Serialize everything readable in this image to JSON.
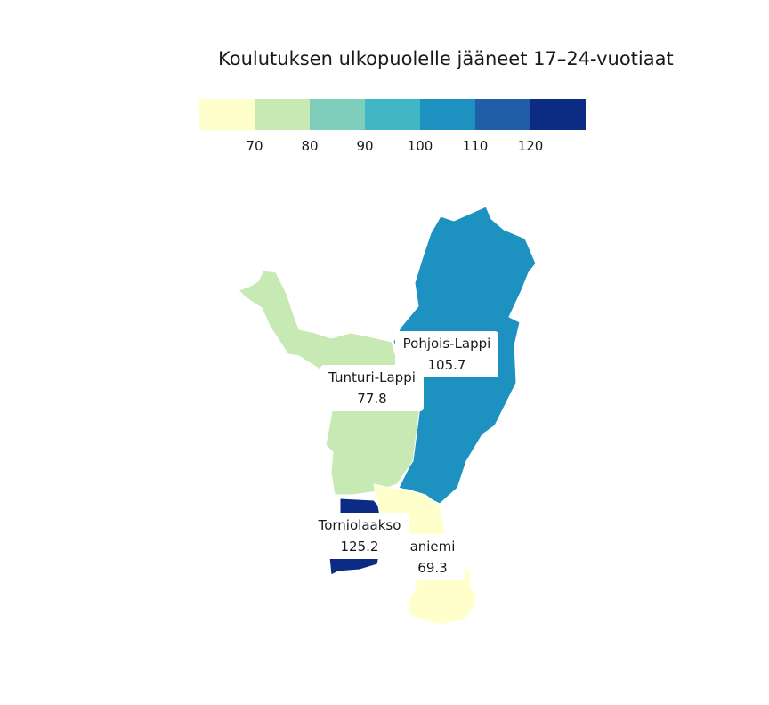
{
  "title": "Koulutuksen ulkopuolelle jääneet 17–24-vuotiaat",
  "legend": {
    "colors": [
      "#ffffcc",
      "#c7e9b4",
      "#7fcdbb",
      "#41b6c4",
      "#1d91c0",
      "#225ea8",
      "#0c2c84"
    ],
    "ticks": [
      "70",
      "80",
      "90",
      "100",
      "110",
      "120"
    ]
  },
  "regions": [
    {
      "name": "Pohjois-Lappi",
      "value": "105.7",
      "color": "#1d91c0"
    },
    {
      "name": "Tunturi-Lappi",
      "value": "77.8",
      "color": "#c7e9b4"
    },
    {
      "name": "Torniolaakso",
      "value": "125.2",
      "color": "#0c2c84"
    },
    {
      "name": "aniemi",
      "value": "69.3",
      "color": "#ffffcc"
    }
  ]
}
